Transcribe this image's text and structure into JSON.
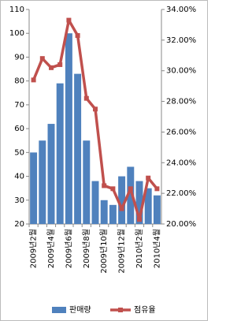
{
  "chart_data": {
    "type": "bar",
    "categories": [
      "2009년2월",
      null,
      "2009년4월",
      null,
      "2009년6월",
      null,
      "2009년8월",
      null,
      "2009년10월",
      null,
      "2009년12월",
      null,
      "2010년2월",
      null,
      "2010년4월"
    ],
    "series": [
      {
        "name": "판매량",
        "color": "#4f81bd",
        "values": [
          50,
          55,
          62,
          79,
          100,
          83,
          55,
          38,
          30,
          28,
          40,
          44,
          38,
          35,
          32
        ]
      },
      {
        "name": "점유율",
        "color": "#c0504d",
        "type": "line",
        "axis": "y2",
        "values": [
          29.4,
          30.8,
          30.2,
          30.4,
          33.3,
          32.3,
          28.2,
          27.5,
          22.5,
          22.3,
          21.0,
          22.3,
          20.3,
          23.0,
          22.3
        ]
      }
    ],
    "ylim": [
      20,
      110
    ],
    "yticks": [
      20,
      30,
      40,
      50,
      60,
      70,
      80,
      90,
      100,
      110
    ],
    "y2lim": [
      20,
      34
    ],
    "y2ticks": [
      {
        "value": 20,
        "label": "20.00%"
      },
      {
        "value": 22,
        "label": "22.00%"
      },
      {
        "value": 24,
        "label": "24.00%"
      },
      {
        "value": 26,
        "label": "26.00%"
      },
      {
        "value": 28,
        "label": "28.00%"
      },
      {
        "value": 30,
        "label": "30.00%"
      },
      {
        "value": 32,
        "label": "32.00%"
      },
      {
        "value": 34,
        "label": "34.00%"
      }
    ],
    "legend": "bottom"
  }
}
